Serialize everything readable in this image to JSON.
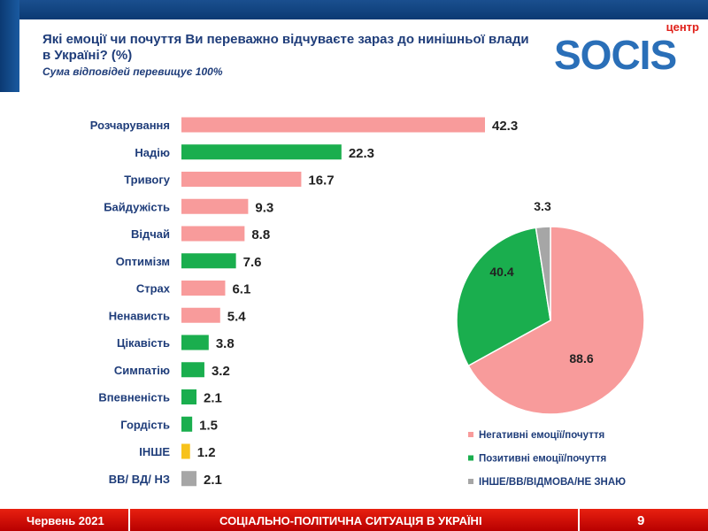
{
  "header": {
    "title": "Які емоції чи почуття Ви переважно відчуваєте зараз до нинішньої влади в Україні? (%)",
    "subtitle": "Сума відповідей перевищує 100%",
    "logo_top": "центр",
    "logo_main": "SOCIS"
  },
  "footer": {
    "date": "Червень 2021",
    "topic": "СОЦІАЛЬНО-ПОЛІТИЧНА СИТУАЦІЯ В УКРАЇНІ",
    "page": "9"
  },
  "colors": {
    "negative": "#f89b9b",
    "positive": "#1aae4e",
    "other": "#f7c21b",
    "dk": "#a6a6a6"
  },
  "chart_data": [
    {
      "type": "bar",
      "orientation": "horizontal",
      "categories": [
        "Розчарування",
        "Надію",
        "Тривогу",
        "Байдужість",
        "Відчай",
        "Оптимізм",
        "Страх",
        "Ненависть",
        "Цікавість",
        "Симпатію",
        "Впевненість",
        "Гордість",
        "ІНШЕ",
        "ВВ/ ВД/ НЗ"
      ],
      "values": [
        42.3,
        22.3,
        16.7,
        9.3,
        8.8,
        7.6,
        6.1,
        5.4,
        3.8,
        3.2,
        2.1,
        1.5,
        1.2,
        2.1
      ],
      "groups": [
        "negative",
        "positive",
        "negative",
        "negative",
        "negative",
        "positive",
        "negative",
        "negative",
        "positive",
        "positive",
        "positive",
        "positive",
        "other",
        "dk"
      ],
      "xlim": [
        0,
        42.3
      ]
    },
    {
      "type": "pie",
      "labels": [
        "Негативні емоції/почуття",
        "Позитивні емоції/почуття",
        "ІНШЕ/ВВ/ВІДМОВА/НЕ ЗНАЮ"
      ],
      "values": [
        88.6,
        40.4,
        3.3
      ],
      "groups": [
        "negative",
        "positive",
        "dk"
      ],
      "legend": "bottom"
    }
  ]
}
